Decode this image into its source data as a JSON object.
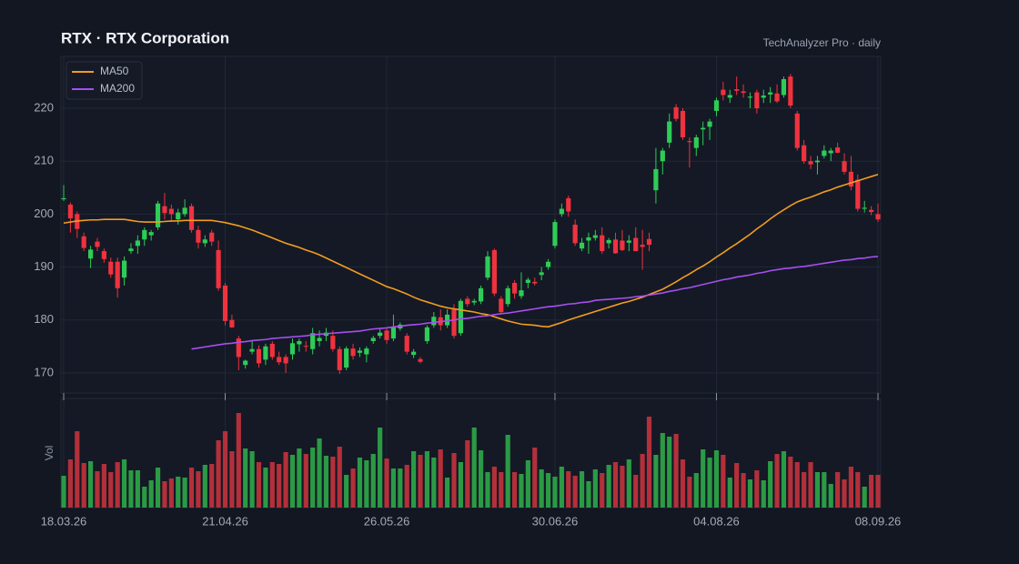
{
  "chart_data": {
    "type": "candlestick",
    "title": "RTX · RTX Corporation",
    "subtitle": "TechAnalyzer Pro · daily",
    "legend": "upper left",
    "grid": true,
    "up_color": "#2ecc57",
    "down_color": "#f0323f",
    "ylim": [
      166.2,
      229.8
    ],
    "yticks": [
      170,
      180,
      190,
      200,
      210,
      220
    ],
    "categories": [
      "18.03.26",
      null,
      null,
      null,
      null,
      null,
      null,
      null,
      null,
      null,
      null,
      null,
      null,
      null,
      null,
      null,
      null,
      null,
      null,
      null,
      null,
      null,
      null,
      null,
      "21.04.26",
      null,
      null,
      null,
      null,
      null,
      null,
      null,
      null,
      null,
      null,
      null,
      null,
      null,
      null,
      null,
      null,
      null,
      null,
      null,
      null,
      null,
      null,
      null,
      "26.05.26",
      null,
      null,
      null,
      null,
      null,
      null,
      null,
      null,
      null,
      null,
      null,
      null,
      null,
      null,
      null,
      null,
      null,
      null,
      null,
      null,
      null,
      null,
      null,
      null,
      "30.06.26",
      null,
      null,
      null,
      null,
      null,
      null,
      null,
      null,
      null,
      null,
      null,
      null,
      null,
      null,
      null,
      null,
      null,
      null,
      null,
      null,
      null,
      null,
      null,
      "04.08.26",
      null,
      null,
      null,
      null,
      null,
      null,
      null,
      null,
      null,
      null,
      null,
      null,
      null,
      null,
      null,
      null,
      null,
      null,
      null,
      null,
      null,
      null,
      null,
      "08.09.26"
    ],
    "open": [
      202.8,
      201.8,
      200.0,
      195.8,
      191.6,
      194.8,
      193.0,
      191.0,
      191.0,
      188.0,
      193.0,
      194.0,
      195.2,
      196.0,
      197.5,
      201.5,
      201.0,
      199.0,
      200.0,
      201.5,
      197.0,
      194.5,
      196.5,
      193.2,
      186.5,
      180.0,
      176.5,
      171.5,
      174.0,
      174.5,
      172.5,
      175.5,
      173.0,
      173.0,
      173.5,
      175.4,
      175.1,
      174.5,
      176.0,
      177.0,
      177.0,
      174.5,
      171.0,
      174.6,
      173.8,
      173.5,
      176.0,
      177.0,
      178.0,
      176.5,
      178.4,
      177.0,
      173.4,
      172.6,
      176.0,
      179.0,
      180.5,
      179.0,
      182.0,
      177.5,
      184.0,
      183.3,
      183.5,
      188.0,
      193.2,
      184.0,
      183.0,
      187.0,
      184.5,
      187.0,
      187.2,
      188.5,
      190.0,
      194.0,
      200.0,
      203.0,
      198.0,
      193.5,
      195.0,
      195.5,
      196.0,
      194.5,
      195.2,
      195.0,
      194.6,
      195.5,
      194.2,
      195.3,
      204.5,
      210.0,
      213.5,
      220.2,
      219.5,
      213.8,
      212.5,
      216.0,
      216.5,
      219.5,
      223.5,
      222.0,
      223.6,
      223.2,
      222.0,
      223.0,
      222.0,
      222.6,
      222.8,
      222.5,
      226.0,
      219.0,
      213.0,
      210.0,
      209.8,
      211.0,
      211.5,
      212.6,
      210.0,
      208.0,
      206.5,
      201.0,
      200.8,
      200.0
    ],
    "high": [
      205.5,
      202.2,
      200.5,
      196.5,
      194.0,
      195.5,
      193.5,
      191.8,
      191.8,
      192.0,
      194.5,
      196.0,
      197.5,
      197.0,
      202.5,
      204.0,
      201.8,
      201.0,
      202.8,
      202.0,
      197.8,
      196.0,
      197.0,
      195.0,
      187.0,
      181.0,
      177.0,
      172.5,
      176.0,
      175.2,
      175.5,
      176.0,
      174.0,
      173.5,
      176.5,
      176.5,
      176.0,
      178.5,
      178.0,
      178.5,
      178.0,
      175.0,
      175.0,
      175.5,
      174.8,
      175.0,
      177.0,
      178.5,
      178.5,
      181.0,
      179.5,
      177.5,
      174.5,
      173.0,
      179.0,
      181.5,
      182.0,
      182.0,
      183.0,
      184.0,
      184.5,
      184.0,
      186.5,
      193.0,
      193.5,
      184.5,
      186.5,
      187.5,
      189.0,
      188.0,
      188.0,
      190.0,
      191.5,
      199.0,
      202.0,
      203.5,
      199.0,
      195.5,
      196.5,
      197.0,
      197.5,
      195.5,
      196.5,
      197.0,
      196.0,
      197.5,
      197.0,
      196.5,
      212.5,
      212.5,
      219.0,
      220.8,
      220.0,
      214.5,
      215.0,
      217.5,
      218.0,
      222.0,
      225.0,
      223.5,
      226.0,
      224.5,
      223.0,
      223.5,
      223.5,
      224.0,
      224.5,
      226.0,
      226.5,
      219.5,
      214.0,
      211.0,
      211.0,
      213.0,
      212.5,
      213.5,
      211.5,
      211.0,
      207.5,
      202.5,
      201.5,
      202.0
    ],
    "low": [
      202.5,
      196.5,
      195.5,
      193.0,
      189.8,
      193.0,
      190.8,
      188.0,
      184.2,
      186.5,
      192.5,
      192.5,
      194.0,
      195.0,
      197.0,
      199.0,
      198.5,
      198.0,
      199.5,
      196.5,
      193.5,
      193.8,
      194.0,
      185.5,
      179.0,
      178.5,
      170.5,
      170.8,
      173.5,
      171.0,
      171.5,
      172.5,
      171.5,
      170.0,
      172.5,
      174.0,
      174.0,
      173.5,
      175.0,
      176.0,
      174.0,
      169.8,
      170.5,
      172.5,
      173.0,
      172.0,
      175.5,
      176.5,
      175.5,
      176.0,
      178.0,
      173.5,
      172.8,
      171.8,
      175.5,
      178.5,
      178.0,
      178.5,
      176.5,
      177.0,
      182.5,
      182.8,
      183.0,
      187.5,
      184.5,
      181.0,
      182.5,
      184.0,
      184.0,
      186.0,
      186.5,
      187.5,
      189.5,
      193.5,
      199.5,
      199.5,
      194.0,
      193.0,
      192.5,
      195.0,
      192.5,
      193.5,
      192.5,
      193.0,
      193.0,
      193.0,
      189.5,
      193.0,
      202.0,
      207.5,
      212.5,
      217.5,
      214.0,
      208.8,
      211.0,
      213.0,
      214.0,
      218.5,
      221.5,
      221.0,
      222.5,
      222.0,
      220.0,
      219.0,
      221.0,
      221.0,
      221.0,
      222.0,
      220.0,
      212.0,
      209.5,
      208.5,
      207.5,
      210.5,
      210.0,
      211.5,
      207.5,
      204.5,
      200.5,
      200.3,
      199.8,
      198.5
    ],
    "close": [
      203.0,
      199.2,
      197.2,
      193.6,
      193.3,
      193.8,
      191.5,
      188.6,
      186.0,
      191.2,
      193.5,
      195.0,
      197.0,
      196.6,
      202.0,
      200.2,
      200.0,
      200.3,
      201.2,
      197.0,
      194.6,
      195.2,
      194.8,
      186.0,
      179.8,
      178.6,
      173.0,
      172.3,
      174.5,
      171.8,
      175.0,
      173.0,
      172.0,
      171.8,
      175.6,
      176.0,
      175.0,
      177.5,
      176.6,
      177.6,
      174.5,
      170.5,
      174.6,
      173.2,
      174.2,
      174.6,
      176.6,
      177.6,
      176.2,
      178.6,
      179.1,
      174.0,
      174.0,
      172.1,
      178.6,
      180.6,
      179.0,
      181.0,
      177.0,
      183.6,
      183.0,
      183.6,
      186.0,
      192.0,
      185.0,
      181.5,
      186.0,
      185.0,
      185.6,
      187.6,
      186.9,
      189.0,
      191.0,
      198.5,
      201.0,
      200.5,
      194.5,
      194.6,
      195.6,
      196.0,
      193.0,
      195.1,
      192.6,
      193.2,
      195.0,
      193.0,
      193.8,
      194.2,
      208.5,
      212.0,
      217.5,
      218.0,
      214.5,
      213.6,
      214.5,
      216.3,
      217.5,
      221.5,
      222.5,
      222.5,
      223.3,
      222.9,
      222.2,
      220.0,
      222.4,
      223.0,
      221.3,
      225.5,
      220.5,
      212.5,
      210.0,
      209.4,
      210.1,
      212.0,
      212.0,
      211.6,
      208.0,
      205.2,
      201.0,
      201.2,
      200.4,
      199.0
    ],
    "series": [
      {
        "name": "MA50",
        "color": "#f39c1f",
        "values": [
          198.3,
          198.5,
          198.7,
          198.8,
          198.9,
          198.9,
          199.0,
          199.0,
          199.0,
          199.0,
          198.8,
          198.6,
          198.5,
          198.5,
          198.5,
          198.6,
          198.7,
          198.7,
          198.8,
          198.8,
          198.8,
          198.8,
          198.8,
          198.6,
          198.4,
          198.1,
          197.8,
          197.4,
          197.0,
          196.5,
          196.0,
          195.5,
          195.0,
          194.5,
          194.1,
          193.7,
          193.2,
          192.8,
          192.3,
          191.7,
          191.1,
          190.5,
          189.9,
          189.3,
          188.7,
          188.1,
          187.5,
          186.9,
          186.3,
          185.9,
          185.4,
          184.9,
          184.3,
          183.8,
          183.4,
          183.0,
          182.6,
          182.3,
          182.1,
          181.9,
          181.7,
          181.5,
          181.2,
          181.0,
          180.6,
          180.2,
          179.8,
          179.5,
          179.2,
          179.1,
          179.0,
          178.8,
          178.7,
          179.1,
          179.5,
          180.0,
          180.4,
          180.8,
          181.2,
          181.6,
          182.0,
          182.4,
          182.8,
          183.2,
          183.5,
          183.9,
          184.3,
          184.8,
          185.3,
          185.8,
          186.5,
          187.2,
          188.0,
          188.7,
          189.5,
          190.2,
          191.0,
          191.9,
          192.7,
          193.6,
          194.4,
          195.3,
          196.2,
          197.2,
          198.1,
          199.1,
          200.0,
          200.8,
          201.6,
          202.3,
          202.8,
          203.2,
          203.7,
          204.2,
          204.6,
          205.1,
          205.5,
          205.9,
          206.3,
          206.7,
          207.1,
          207.5
        ]
      },
      {
        "name": "MA200",
        "color": "#a64ff0",
        "values": [
          null,
          null,
          null,
          null,
          null,
          null,
          null,
          null,
          null,
          null,
          null,
          null,
          null,
          null,
          null,
          null,
          null,
          null,
          null,
          174.5,
          174.7,
          174.9,
          175.1,
          175.3,
          175.5,
          175.6,
          175.8,
          175.9,
          176.1,
          176.2,
          176.3,
          176.5,
          176.6,
          176.7,
          176.8,
          176.9,
          177.0,
          177.2,
          177.3,
          177.4,
          177.5,
          177.6,
          177.7,
          177.8,
          177.9,
          178.1,
          178.3,
          178.4,
          178.5,
          178.7,
          178.8,
          179.0,
          179.1,
          179.2,
          179.4,
          179.5,
          179.7,
          179.8,
          180.0,
          180.2,
          180.3,
          180.5,
          180.7,
          180.8,
          181.0,
          181.2,
          181.3,
          181.5,
          181.7,
          181.9,
          182.1,
          182.3,
          182.5,
          182.6,
          182.8,
          183.0,
          183.1,
          183.3,
          183.4,
          183.7,
          183.8,
          183.9,
          184.0,
          184.1,
          184.2,
          184.4,
          184.5,
          184.7,
          184.9,
          185.1,
          185.4,
          185.6,
          185.9,
          186.1,
          186.4,
          186.7,
          187.0,
          187.3,
          187.6,
          187.8,
          188.1,
          188.3,
          188.5,
          188.8,
          189.0,
          189.3,
          189.5,
          189.7,
          189.8,
          190.0,
          190.1,
          190.3,
          190.5,
          190.7,
          190.9,
          191.1,
          191.3,
          191.4,
          191.6,
          191.7,
          191.9,
          192.0
        ]
      }
    ],
    "volume": {
      "label": "Vol",
      "ylim": [
        0,
        120
      ],
      "up_color": "#2b9a45",
      "down_color": "#b3303a",
      "values": [
        35,
        53,
        84,
        49,
        51,
        40,
        48,
        39,
        50,
        53,
        41,
        41,
        23,
        30,
        44,
        29,
        32,
        34,
        33,
        44,
        40,
        47,
        48,
        74,
        84,
        62,
        104,
        65,
        62,
        50,
        44,
        50,
        48,
        61,
        58,
        65,
        59,
        66,
        76,
        57,
        56,
        67,
        36,
        43,
        55,
        52,
        59,
        88,
        54,
        43,
        43,
        47,
        62,
        58,
        62,
        55,
        64,
        33,
        60,
        50,
        74,
        88,
        63,
        39,
        45,
        39,
        80,
        39,
        37,
        52,
        66,
        42,
        38,
        34,
        45,
        40,
        35,
        40,
        29,
        42,
        38,
        47,
        50,
        46,
        53,
        36,
        59,
        100,
        58,
        82,
        78,
        81,
        53,
        34,
        38,
        64,
        55,
        63,
        58,
        33,
        49,
        38,
        31,
        41,
        30,
        51,
        59,
        62,
        56,
        50,
        39,
        50,
        39,
        39,
        26,
        39,
        31,
        45,
        39,
        23,
        36,
        36
      ]
    }
  }
}
